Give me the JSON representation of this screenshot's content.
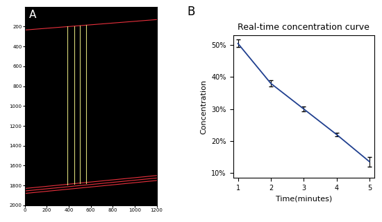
{
  "chart_data": [
    {
      "type": "image",
      "label": "A",
      "xlim": [
        0,
        1200
      ],
      "ylim": [
        2000,
        0
      ],
      "xticks": [
        0,
        200,
        400,
        600,
        800,
        1000,
        1200
      ],
      "yticks": [
        200,
        400,
        600,
        800,
        1000,
        1200,
        1400,
        1600,
        1800,
        2000
      ],
      "lines": [
        {
          "x": [
            0,
            1200
          ],
          "y": [
            235,
            130
          ],
          "color": "#e8303c"
        },
        {
          "x": [
            0,
            1200
          ],
          "y": [
            1830,
            1700
          ],
          "color": "#e8303c"
        },
        {
          "x": [
            0,
            1200
          ],
          "y": [
            1855,
            1725
          ],
          "color": "#e8303c"
        },
        {
          "x": [
            0,
            1200
          ],
          "y": [
            1880,
            1750
          ],
          "color": "#e8303c"
        },
        {
          "x": [
            390,
            390
          ],
          "y": [
            200,
            1790
          ],
          "color": "#d8d878"
        },
        {
          "x": [
            450,
            450
          ],
          "y": [
            195,
            1785
          ],
          "color": "#d8d878"
        },
        {
          "x": [
            500,
            500
          ],
          "y": [
            190,
            1780
          ],
          "color": "#d8d878"
        },
        {
          "x": [
            560,
            560
          ],
          "y": [
            185,
            1775
          ],
          "color": "#d8d878"
        }
      ]
    },
    {
      "type": "line",
      "label": "B",
      "title": "Real-time concentration curve",
      "x_label": "Time(minutes)",
      "y_label": "Concentration",
      "x": [
        1,
        2,
        3,
        4,
        5
      ],
      "values": [
        50.5,
        38,
        30,
        22,
        13.5
      ],
      "errors": [
        1.2,
        1.0,
        0.7,
        0.6,
        1.5
      ],
      "color": "#1f3f8f",
      "grid": false,
      "xlim": [
        0.85,
        5.15
      ],
      "ylim": [
        8.5,
        53
      ],
      "xticks": [
        1,
        2,
        3,
        4,
        5
      ],
      "yticks": [
        {
          "value": 10,
          "label": "10%"
        },
        {
          "value": 20,
          "label": "20%"
        },
        {
          "value": 30,
          "label": "30%"
        },
        {
          "value": 40,
          "label": "40%"
        },
        {
          "value": 50,
          "label": "50%"
        }
      ]
    }
  ]
}
